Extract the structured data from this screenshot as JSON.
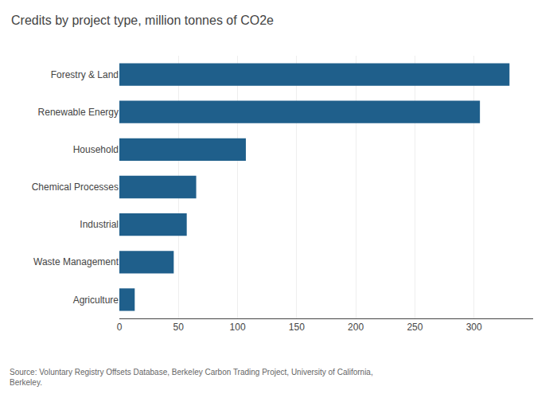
{
  "chart_data": {
    "type": "bar",
    "orientation": "horizontal",
    "title": "Credits by project type, million tonnes of CO2e",
    "categories": [
      "Forestry & Land",
      "Renewable Energy",
      "Household",
      "Chemical Processes",
      "Industrial",
      "Waste Management",
      "Agriculture"
    ],
    "values": [
      330,
      305,
      107,
      65,
      57,
      46,
      13
    ],
    "color": "#1f5f8b",
    "xlim": [
      0,
      350
    ],
    "xticks": [
      0,
      50,
      100,
      150,
      200,
      250,
      300
    ],
    "grid": true,
    "annotations": [
      "Source: Voluntary Registry Offsets Database, Berkeley Carbon Trading Project, University of California,\nBerkeley."
    ]
  }
}
